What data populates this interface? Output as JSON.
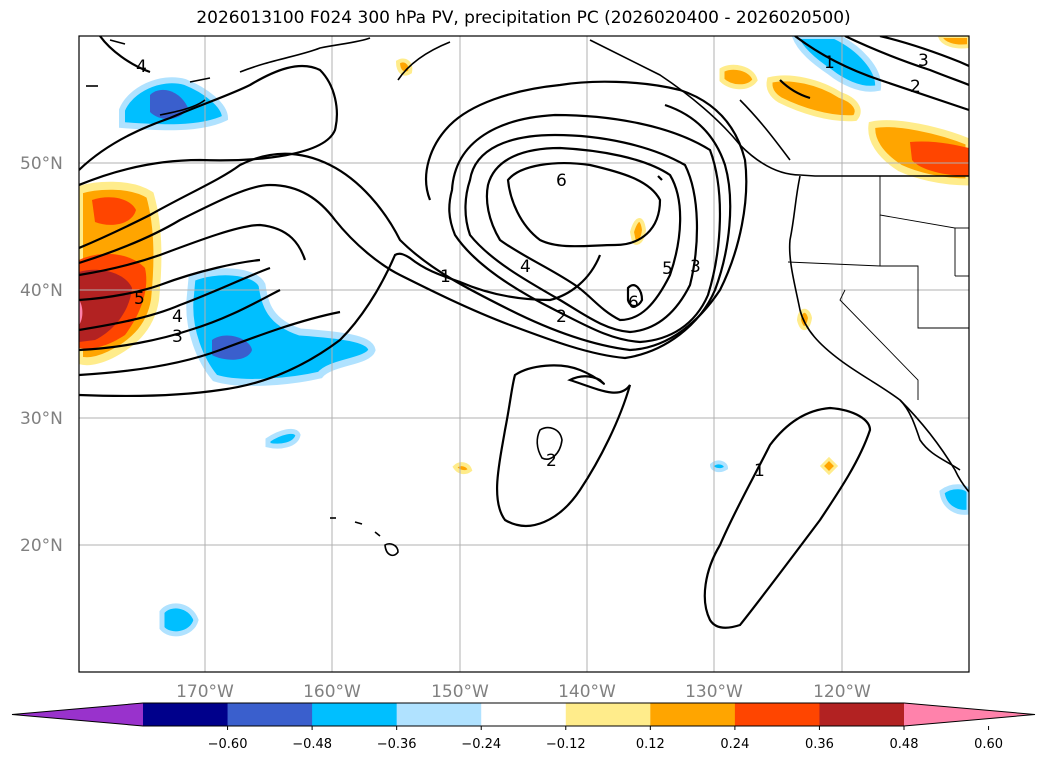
{
  "title": "2026013100 F024 300 hPa PV, precipitation PC (2026020400 - 2026020500)",
  "lat_labels": [
    "50°N",
    "40°N",
    "30°N",
    "20°N"
  ],
  "lon_labels": [
    "170°W",
    "160°W",
    "150°W",
    "140°W",
    "130°W",
    "120°W"
  ],
  "contour_labels": [
    "4",
    "6",
    "1",
    "4",
    "2",
    "5",
    "3",
    "6",
    "5",
    "4",
    "3",
    "2",
    "1",
    "3",
    "2",
    "1"
  ],
  "colorbar": {
    "tick_labels": [
      "−0.60",
      "−0.48",
      "−0.36",
      "−0.24",
      "−0.12",
      "0.12",
      "0.24",
      "0.36",
      "0.48",
      "0.60"
    ],
    "colors": [
      "#9932cc",
      "#00008b",
      "#3a5fcd",
      "#00bfff",
      "#b0e2ff",
      "#ffffff",
      "#ffec8b",
      "#ffa500",
      "#ff4500",
      "#b22222",
      "#ff82ab"
    ]
  }
}
